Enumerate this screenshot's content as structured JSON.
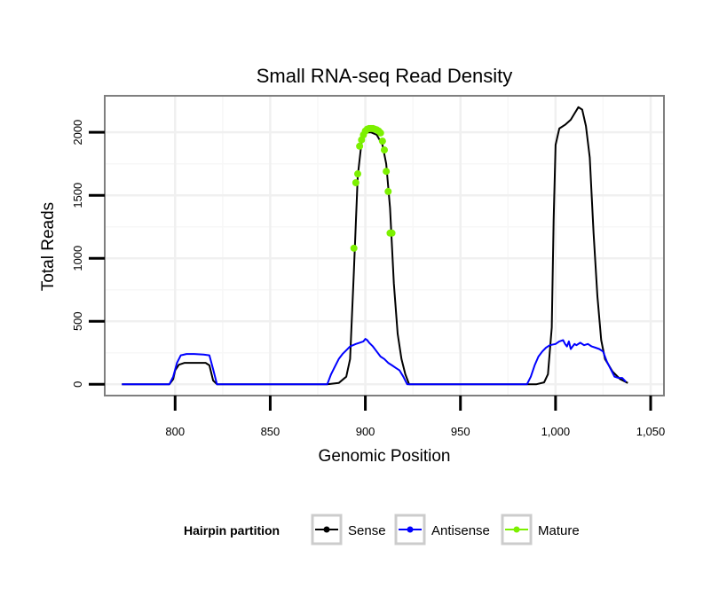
{
  "chart_data": {
    "type": "line",
    "title": "Small RNA-seq Read Density",
    "xlabel": "Genomic Position",
    "ylabel": "Total Reads",
    "xlim": [
      763,
      1057
    ],
    "ylim": [
      -90,
      2290
    ],
    "xticks": [
      800,
      850,
      900,
      950,
      1000,
      1050
    ],
    "xtick_labels": [
      "800",
      "850",
      "900",
      "950",
      "1,000",
      "1,050"
    ],
    "yticks": [
      0,
      500,
      1000,
      1500,
      2000
    ],
    "ytick_labels": [
      "0",
      "500",
      "1000",
      "1500",
      "2000"
    ],
    "grid": true,
    "legend": {
      "title": "Hairpin partition",
      "position": "bottom",
      "entries": [
        "Sense",
        "Antisense",
        "Mature"
      ]
    },
    "series": [
      {
        "name": "Sense",
        "color": "#000000",
        "style": "line",
        "x": [
          772,
          797,
          799,
          800,
          802,
          805,
          808,
          812,
          816,
          818,
          820,
          822,
          880,
          886,
          890,
          892,
          894,
          896,
          898,
          900,
          903,
          906,
          909,
          911,
          913,
          915,
          917,
          919,
          921,
          923,
          990,
          994,
          996,
          998,
          999,
          1000,
          1002,
          1005,
          1008,
          1010,
          1012,
          1014,
          1016,
          1018,
          1020,
          1022,
          1024,
          1026,
          1028,
          1030,
          1034,
          1038
        ],
        "y": [
          0,
          0,
          40,
          110,
          155,
          170,
          170,
          170,
          170,
          150,
          30,
          0,
          0,
          10,
          60,
          200,
          900,
          1650,
          1920,
          2000,
          2000,
          1980,
          1900,
          1750,
          1400,
          800,
          400,
          200,
          80,
          0,
          0,
          15,
          80,
          450,
          1300,
          1900,
          2030,
          2060,
          2100,
          2150,
          2200,
          2180,
          2050,
          1800,
          1200,
          700,
          350,
          200,
          150,
          100,
          40,
          10
        ]
      },
      {
        "name": "Antisense",
        "color": "#0000ff",
        "style": "line",
        "x": [
          772,
          797,
          799,
          801,
          803,
          806,
          810,
          815,
          818,
          820,
          822,
          880,
          882,
          884,
          886,
          888,
          890,
          892,
          895,
          897,
          899,
          900,
          901,
          902,
          904,
          906,
          908,
          910,
          912,
          914,
          916,
          918,
          920,
          922,
          985,
          987,
          989,
          991,
          993,
          995,
          997,
          1000,
          1002,
          1004,
          1005,
          1006,
          1007,
          1008,
          1009,
          1010,
          1011,
          1013,
          1015,
          1017,
          1019,
          1021,
          1023,
          1025,
          1027,
          1029,
          1031,
          1033,
          1035,
          1037
        ],
        "y": [
          0,
          0,
          60,
          170,
          230,
          240,
          240,
          235,
          230,
          120,
          0,
          0,
          80,
          140,
          200,
          240,
          270,
          300,
          320,
          330,
          340,
          360,
          350,
          330,
          300,
          260,
          220,
          200,
          170,
          150,
          130,
          110,
          60,
          0,
          0,
          60,
          150,
          220,
          260,
          290,
          310,
          320,
          340,
          350,
          320,
          300,
          340,
          280,
          300,
          320,
          310,
          330,
          310,
          320,
          300,
          290,
          280,
          260,
          180,
          120,
          60,
          50,
          50,
          20
        ]
      },
      {
        "name": "Mature",
        "color": "#7cf000",
        "style": "points",
        "x": [
          894,
          895,
          896,
          897,
          898,
          899,
          900,
          901,
          902,
          903,
          904,
          905,
          906,
          907,
          908,
          909,
          910,
          911,
          912,
          913,
          914
        ],
        "y": [
          1080,
          1600,
          1670,
          1890,
          1940,
          1980,
          2010,
          2025,
          2030,
          2030,
          2030,
          2025,
          2020,
          2010,
          1995,
          1930,
          1860,
          1690,
          1530,
          1200,
          1200
        ]
      }
    ]
  }
}
